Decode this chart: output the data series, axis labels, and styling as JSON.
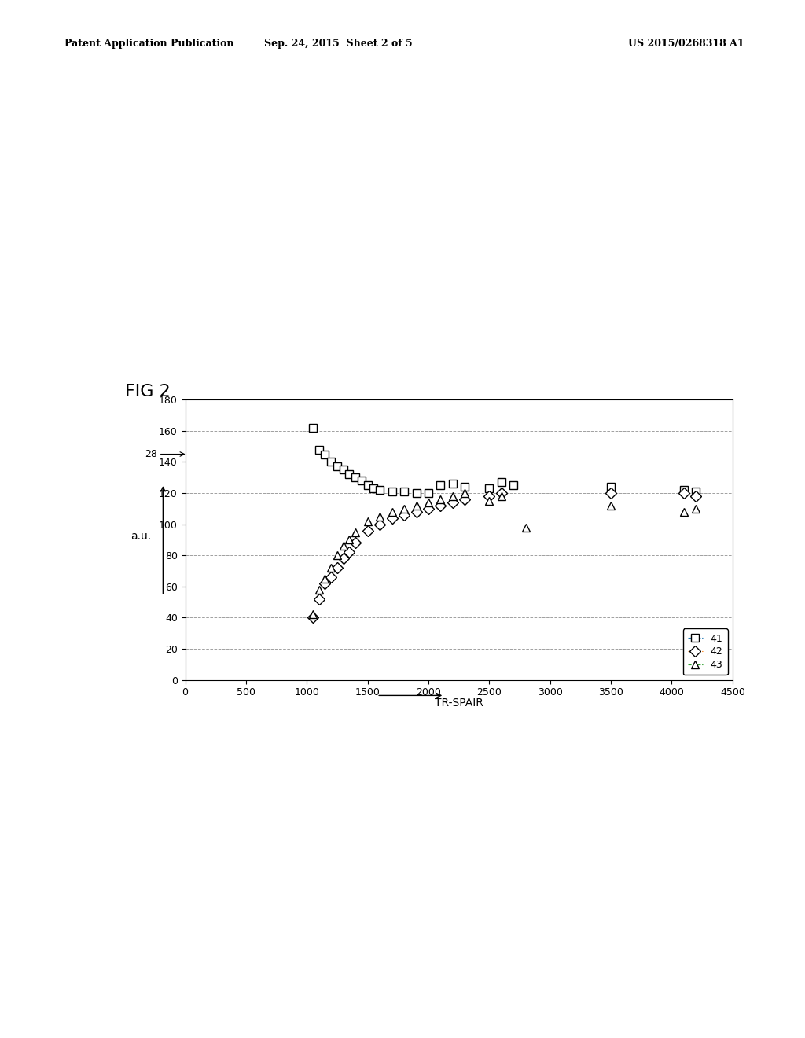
{
  "title_fig": "FIG 2",
  "xlabel": "TR-SPAIR",
  "ylabel": "a.u.",
  "xlim": [
    0,
    4500
  ],
  "ylim": [
    0,
    180
  ],
  "xticks": [
    0,
    500,
    1000,
    1500,
    2000,
    2500,
    3000,
    3500,
    4000,
    4500
  ],
  "yticks": [
    0,
    20,
    40,
    60,
    80,
    100,
    120,
    140,
    160,
    180
  ],
  "arrow_label": "28",
  "series_41_x": [
    1050,
    1100,
    1150,
    1200,
    1250,
    1300,
    1350,
    1400,
    1450,
    1500,
    1550,
    1600,
    1700,
    1800,
    1900,
    2000,
    2100,
    2200,
    2300,
    2500,
    2600,
    2700,
    3500,
    4100,
    4200
  ],
  "series_41_y": [
    162,
    148,
    145,
    140,
    137,
    135,
    132,
    130,
    128,
    125,
    123,
    122,
    121,
    121,
    120,
    120,
    125,
    126,
    124,
    123,
    127,
    125,
    124,
    122,
    121
  ],
  "series_42_x": [
    1050,
    1100,
    1150,
    1200,
    1250,
    1300,
    1350,
    1400,
    1500,
    1600,
    1700,
    1800,
    1900,
    2000,
    2100,
    2200,
    2300,
    2500,
    2600,
    3500,
    4100,
    4200
  ],
  "series_42_y": [
    40,
    52,
    62,
    66,
    72,
    78,
    82,
    88,
    96,
    100,
    104,
    106,
    108,
    110,
    112,
    114,
    116,
    118,
    120,
    120,
    120,
    118
  ],
  "series_43_x": [
    1050,
    1100,
    1150,
    1200,
    1250,
    1300,
    1350,
    1400,
    1500,
    1600,
    1700,
    1800,
    1900,
    2000,
    2100,
    2200,
    2300,
    2500,
    2600,
    2800,
    3500,
    4100,
    4200
  ],
  "series_43_y": [
    42,
    58,
    65,
    72,
    80,
    86,
    90,
    95,
    102,
    105,
    108,
    110,
    112,
    114,
    116,
    118,
    120,
    115,
    118,
    98,
    112,
    108,
    110
  ],
  "legend_labels": [
    "41",
    "42",
    "43"
  ],
  "background_color": "#ffffff",
  "grid_color": "#888888",
  "marker_color": "#000000",
  "header_left": "Patent Application Publication",
  "header_center": "Sep. 24, 2015  Sheet 2 of 5",
  "header_right": "US 2015/0268318 A1"
}
